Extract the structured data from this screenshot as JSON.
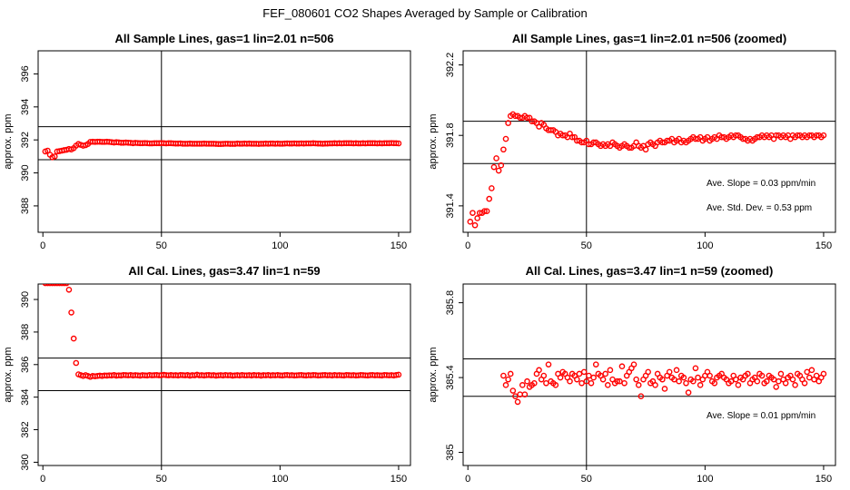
{
  "figure_title": "FEF_080601  CO2 Shapes Averaged by Sample or Calibration",
  "chart_data": [
    {
      "type": "scatter",
      "title": "All Sample Lines, gas=1 lin=2.01 n=506",
      "ylabel": "approx. ppm",
      "xlim": [
        -2,
        155
      ],
      "ylim": [
        386.4,
        397.4
      ],
      "xticks": [
        0,
        50,
        100,
        150
      ],
      "yticks": [
        388,
        390,
        392,
        394,
        396
      ],
      "vline": 50,
      "hlines": [
        390.8,
        392.8
      ],
      "annotations": [],
      "x": [
        1,
        2,
        3,
        4,
        5,
        6,
        7,
        8,
        9,
        10,
        11,
        12,
        13,
        14,
        15,
        16,
        17,
        18,
        19,
        20,
        21,
        22,
        23,
        24,
        25,
        26,
        27,
        28,
        29,
        30,
        31,
        32,
        33,
        34,
        35,
        36,
        37,
        38,
        39,
        40,
        41,
        42,
        43,
        44,
        45,
        46,
        47,
        48,
        49,
        50,
        51,
        52,
        53,
        54,
        55,
        56,
        57,
        58,
        59,
        60,
        61,
        62,
        63,
        64,
        65,
        66,
        67,
        68,
        69,
        70,
        71,
        72,
        73,
        74,
        75,
        76,
        77,
        78,
        79,
        80,
        81,
        82,
        83,
        84,
        85,
        86,
        87,
        88,
        89,
        90,
        91,
        92,
        93,
        94,
        95,
        96,
        97,
        98,
        99,
        100,
        101,
        102,
        103,
        104,
        105,
        106,
        107,
        108,
        109,
        110,
        111,
        112,
        113,
        114,
        115,
        116,
        117,
        118,
        119,
        120,
        121,
        122,
        123,
        124,
        125,
        126,
        127,
        128,
        129,
        130,
        131,
        132,
        133,
        134,
        135,
        136,
        137,
        138,
        139,
        140,
        141,
        142,
        143,
        144,
        145,
        146,
        147,
        148,
        149,
        150
      ],
      "y": [
        391.3,
        391.35,
        391.1,
        390.95,
        391.0,
        391.3,
        391.32,
        391.35,
        391.38,
        391.4,
        391.45,
        391.42,
        391.5,
        391.65,
        391.75,
        391.7,
        391.65,
        391.68,
        391.75,
        391.88,
        391.89,
        391.88,
        391.89,
        391.89,
        391.88,
        391.88,
        391.89,
        391.88,
        391.86,
        391.84,
        391.86,
        391.85,
        391.83,
        391.83,
        391.84,
        391.83,
        391.82,
        391.8,
        391.82,
        391.81,
        391.8,
        391.8,
        391.81,
        391.8,
        391.79,
        391.79,
        391.8,
        391.8,
        391.8,
        391.81,
        391.8,
        391.79,
        391.8,
        391.8,
        391.79,
        391.78,
        391.78,
        391.79,
        391.77,
        391.77,
        391.77,
        391.78,
        391.77,
        391.77,
        391.77,
        391.77,
        391.77,
        391.78,
        391.77,
        391.77,
        391.77,
        391.77,
        391.76,
        391.75,
        391.75,
        391.76,
        391.77,
        391.77,
        391.76,
        391.76,
        391.76,
        391.78,
        391.77,
        391.77,
        391.78,
        391.77,
        391.78,
        391.77,
        391.77,
        391.77,
        391.76,
        391.77,
        391.77,
        391.78,
        391.77,
        391.78,
        391.78,
        391.77,
        391.78,
        391.77,
        391.77,
        391.78,
        391.79,
        391.78,
        391.78,
        391.79,
        391.78,
        391.78,
        391.79,
        391.78,
        391.79,
        391.79,
        391.79,
        391.8,
        391.79,
        391.78,
        391.78,
        391.77,
        391.78,
        391.78,
        391.79,
        391.79,
        391.8,
        391.79,
        391.8,
        391.79,
        391.8,
        391.8,
        391.8,
        391.8,
        391.79,
        391.8,
        391.79,
        391.79,
        391.8,
        391.79,
        391.8,
        391.8,
        391.8,
        391.8,
        391.79,
        391.8,
        391.79,
        391.8,
        391.8,
        391.8,
        391.81,
        391.8,
        391.8,
        391.79
      ]
    },
    {
      "type": "scatter",
      "title": "All Sample Lines, gas=1 lin=2.01 n=506 (zoomed)",
      "ylabel": "approx. ppm",
      "xlim": [
        -2,
        155
      ],
      "ylim": [
        391.25,
        392.28
      ],
      "xticks": [
        0,
        50,
        100,
        150
      ],
      "yticks": [
        391.4,
        391.8,
        392.2
      ],
      "vline": 50,
      "hlines": [
        391.64,
        391.88
      ],
      "annotations": [
        "Ave. Slope =  0.03  ppm/min",
        "Ave. Std. Dev. =  0.53  ppm"
      ],
      "x": [
        1,
        2,
        3,
        4,
        5,
        6,
        7,
        8,
        9,
        10,
        11,
        12,
        13,
        14,
        15,
        16,
        17,
        18,
        19,
        20,
        21,
        22,
        23,
        24,
        25,
        26,
        27,
        28,
        29,
        30,
        31,
        32,
        33,
        34,
        35,
        36,
        37,
        38,
        39,
        40,
        41,
        42,
        43,
        44,
        45,
        46,
        47,
        48,
        49,
        50,
        51,
        52,
        53,
        54,
        55,
        56,
        57,
        58,
        59,
        60,
        61,
        62,
        63,
        64,
        65,
        66,
        67,
        68,
        69,
        70,
        71,
        72,
        73,
        74,
        75,
        76,
        77,
        78,
        79,
        80,
        81,
        82,
        83,
        84,
        85,
        86,
        87,
        88,
        89,
        90,
        91,
        92,
        93,
        94,
        95,
        96,
        97,
        98,
        99,
        100,
        101,
        102,
        103,
        104,
        105,
        106,
        107,
        108,
        109,
        110,
        111,
        112,
        113,
        114,
        115,
        116,
        117,
        118,
        119,
        120,
        121,
        122,
        123,
        124,
        125,
        126,
        127,
        128,
        129,
        130,
        131,
        132,
        133,
        134,
        135,
        136,
        137,
        138,
        139,
        140,
        141,
        142,
        143,
        144,
        145,
        146,
        147,
        148,
        149,
        150
      ],
      "y": [
        391.31,
        391.36,
        391.29,
        391.33,
        391.36,
        391.36,
        391.37,
        391.37,
        391.44,
        391.5,
        391.62,
        391.67,
        391.6,
        391.63,
        391.72,
        391.78,
        391.87,
        391.91,
        391.92,
        391.91,
        391.91,
        391.9,
        391.9,
        391.91,
        391.9,
        391.9,
        391.88,
        391.88,
        391.87,
        391.85,
        391.87,
        391.86,
        391.84,
        391.83,
        391.83,
        391.83,
        391.82,
        391.8,
        391.81,
        391.8,
        391.8,
        391.79,
        391.81,
        391.79,
        391.79,
        391.77,
        391.77,
        391.76,
        391.76,
        391.77,
        391.75,
        391.75,
        391.76,
        391.76,
        391.75,
        391.74,
        391.75,
        391.74,
        391.75,
        391.74,
        391.76,
        391.75,
        391.74,
        391.73,
        391.74,
        391.75,
        391.74,
        391.73,
        391.73,
        391.74,
        391.76,
        391.74,
        391.73,
        391.74,
        391.72,
        391.75,
        391.76,
        391.75,
        391.74,
        391.76,
        391.77,
        391.76,
        391.76,
        391.77,
        391.77,
        391.78,
        391.76,
        391.77,
        391.78,
        391.76,
        391.77,
        391.76,
        391.77,
        391.78,
        391.79,
        391.78,
        391.78,
        391.79,
        391.77,
        391.78,
        391.79,
        391.77,
        391.78,
        391.79,
        391.78,
        391.8,
        391.79,
        391.79,
        391.78,
        391.79,
        391.8,
        391.79,
        391.8,
        391.8,
        391.79,
        391.78,
        391.78,
        391.77,
        391.78,
        391.77,
        391.78,
        391.79,
        391.79,
        391.8,
        391.79,
        391.8,
        391.79,
        391.8,
        391.78,
        391.8,
        391.8,
        391.79,
        391.8,
        391.79,
        391.8,
        391.78,
        391.8,
        391.79,
        391.8,
        391.8,
        391.79,
        391.8,
        391.79,
        391.8,
        391.8,
        391.79,
        391.8,
        391.8,
        391.79,
        391.8
      ]
    },
    {
      "type": "scatter",
      "title": "All Cal. Lines, gas=3.47 lin=1 n=59",
      "ylabel": "approx. ppm",
      "xlim": [
        -2,
        155
      ],
      "ylim": [
        379.8,
        390.95
      ],
      "xticks": [
        0,
        50,
        100,
        150
      ],
      "yticks": [
        380,
        382,
        384,
        386,
        388,
        390
      ],
      "vline": 50,
      "hlines": [
        384.4,
        386.4
      ],
      "annotations": [],
      "x": [
        1,
        2,
        3,
        4,
        5,
        6,
        7,
        8,
        9,
        10,
        11,
        12,
        13,
        14,
        15,
        16,
        17,
        18,
        19,
        20,
        21,
        22,
        23,
        24,
        25,
        26,
        27,
        28,
        29,
        30,
        31,
        32,
        33,
        34,
        35,
        36,
        37,
        38,
        39,
        40,
        41,
        42,
        43,
        44,
        45,
        46,
        47,
        48,
        49,
        50,
        51,
        52,
        53,
        54,
        55,
        56,
        57,
        58,
        59,
        60,
        61,
        62,
        63,
        64,
        65,
        66,
        67,
        68,
        69,
        70,
        71,
        72,
        73,
        74,
        75,
        76,
        77,
        78,
        79,
        80,
        81,
        82,
        83,
        84,
        85,
        86,
        87,
        88,
        89,
        90,
        91,
        92,
        93,
        94,
        95,
        96,
        97,
        98,
        99,
        100,
        101,
        102,
        103,
        104,
        105,
        106,
        107,
        108,
        109,
        110,
        111,
        112,
        113,
        114,
        115,
        116,
        117,
        118,
        119,
        120,
        121,
        122,
        123,
        124,
        125,
        126,
        127,
        128,
        129,
        130,
        131,
        132,
        133,
        134,
        135,
        136,
        137,
        138,
        139,
        140,
        141,
        142,
        143,
        144,
        145,
        146,
        147,
        148,
        149,
        150
      ],
      "y": [
        391.0,
        391.0,
        391.0,
        391.0,
        391.0,
        391.0,
        391.0,
        391.0,
        391.0,
        391.0,
        390.6,
        389.2,
        387.6,
        386.1,
        385.4,
        385.35,
        385.3,
        385.35,
        385.3,
        385.25,
        385.3,
        385.28,
        385.3,
        385.32,
        385.3,
        385.33,
        385.32,
        385.34,
        385.33,
        385.36,
        385.32,
        385.34,
        385.33,
        385.36,
        385.35,
        385.34,
        385.36,
        385.33,
        385.35,
        385.34,
        385.32,
        385.35,
        385.34,
        385.33,
        385.36,
        385.34,
        385.35,
        385.36,
        385.34,
        385.35,
        385.37,
        385.35,
        385.34,
        385.36,
        385.34,
        385.35,
        385.33,
        385.36,
        385.35,
        385.34,
        385.36,
        385.32,
        385.35,
        385.34,
        385.38,
        385.34,
        385.35,
        385.33,
        385.35,
        385.36,
        385.34,
        385.35,
        385.32,
        385.34,
        385.35,
        385.33,
        385.36,
        385.34,
        385.35,
        385.32,
        385.34,
        385.35,
        385.33,
        385.36,
        385.34,
        385.34,
        385.35,
        385.33,
        385.36,
        385.34,
        385.35,
        385.32,
        385.35,
        385.34,
        385.36,
        385.33,
        385.35,
        385.34,
        385.36,
        385.34,
        385.33,
        385.35,
        385.36,
        385.34,
        385.35,
        385.33,
        385.34,
        385.35,
        385.36,
        385.34,
        385.33,
        385.35,
        385.34,
        385.36,
        385.35,
        385.33,
        385.34,
        385.35,
        385.36,
        385.34,
        385.35,
        385.33,
        385.36,
        385.34,
        385.35,
        385.34,
        385.33,
        385.36,
        385.35,
        385.34,
        385.35,
        385.33,
        385.34,
        385.36,
        385.35,
        385.34,
        385.33,
        385.35,
        385.36,
        385.34,
        385.35,
        385.34,
        385.33,
        385.36,
        385.35,
        385.34,
        385.35,
        385.33,
        385.36,
        385.38
      ]
    },
    {
      "type": "scatter",
      "title": "All Cal. Lines, gas=3.47 lin=1 n=59 (zoomed)",
      "ylabel": "approx. ppm",
      "xlim": [
        -2,
        155
      ],
      "ylim": [
        384.93,
        385.9
      ],
      "xticks": [
        0,
        50,
        100,
        150
      ],
      "yticks": [
        385.0,
        385.4,
        385.8
      ],
      "vline": 50,
      "hlines": [
        385.3,
        385.5
      ],
      "annotations": [
        "Ave. Slope =  0.01  ppm/min"
      ],
      "x": [
        15,
        16,
        17,
        18,
        19,
        20,
        21,
        22,
        23,
        24,
        25,
        26,
        27,
        28,
        29,
        30,
        31,
        32,
        33,
        34,
        35,
        36,
        37,
        38,
        39,
        40,
        41,
        42,
        43,
        44,
        45,
        46,
        47,
        48,
        49,
        50,
        51,
        52,
        53,
        54,
        55,
        56,
        57,
        58,
        59,
        60,
        61,
        62,
        63,
        64,
        65,
        66,
        67,
        68,
        69,
        70,
        71,
        72,
        73,
        74,
        75,
        76,
        77,
        78,
        79,
        80,
        81,
        82,
        83,
        84,
        85,
        86,
        87,
        88,
        89,
        90,
        91,
        92,
        93,
        94,
        95,
        96,
        97,
        98,
        99,
        100,
        101,
        102,
        103,
        104,
        105,
        106,
        107,
        108,
        109,
        110,
        111,
        112,
        113,
        114,
        115,
        116,
        117,
        118,
        119,
        120,
        121,
        122,
        123,
        124,
        125,
        126,
        127,
        128,
        129,
        130,
        131,
        132,
        133,
        134,
        135,
        136,
        137,
        138,
        139,
        140,
        141,
        142,
        143,
        144,
        145,
        146,
        147,
        148,
        149,
        150
      ],
      "y": [
        385.41,
        385.36,
        385.39,
        385.42,
        385.33,
        385.3,
        385.27,
        385.31,
        385.36,
        385.31,
        385.38,
        385.35,
        385.36,
        385.37,
        385.42,
        385.44,
        385.39,
        385.41,
        385.37,
        385.47,
        385.38,
        385.37,
        385.36,
        385.42,
        385.4,
        385.43,
        385.42,
        385.4,
        385.38,
        385.42,
        385.41,
        385.39,
        385.42,
        385.37,
        385.43,
        385.38,
        385.41,
        385.37,
        385.4,
        385.47,
        385.42,
        385.41,
        385.39,
        385.42,
        385.36,
        385.44,
        385.39,
        385.37,
        385.38,
        385.38,
        385.46,
        385.37,
        385.41,
        385.43,
        385.45,
        385.47,
        385.39,
        385.36,
        385.3,
        385.39,
        385.41,
        385.43,
        385.37,
        385.38,
        385.36,
        385.42,
        385.4,
        385.39,
        385.34,
        385.41,
        385.43,
        385.4,
        385.39,
        385.44,
        385.38,
        385.41,
        385.4,
        385.37,
        385.32,
        385.39,
        385.38,
        385.45,
        385.4,
        385.36,
        385.39,
        385.41,
        385.43,
        385.41,
        385.38,
        385.37,
        385.4,
        385.41,
        385.42,
        385.4,
        385.39,
        385.37,
        385.38,
        385.41,
        385.39,
        385.36,
        385.4,
        385.39,
        385.41,
        385.42,
        385.37,
        385.39,
        385.4,
        385.38,
        385.42,
        385.41,
        385.37,
        385.38,
        385.41,
        385.4,
        385.39,
        385.35,
        385.38,
        385.42,
        385.39,
        385.37,
        385.4,
        385.41,
        385.39,
        385.36,
        385.42,
        385.41,
        385.39,
        385.37,
        385.43,
        385.4,
        385.44,
        385.39,
        385.41,
        385.38,
        385.4,
        385.42
      ]
    }
  ]
}
